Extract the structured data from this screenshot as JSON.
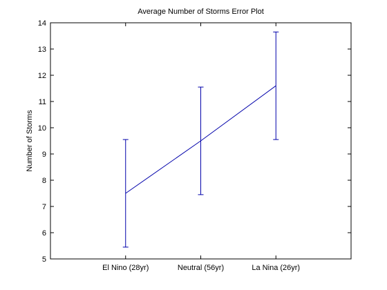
{
  "chart_data": {
    "type": "line",
    "title": "Average Number of Storms Error Plot",
    "xlabel": "",
    "ylabel": "Number of Storms",
    "categories": [
      "El Nino (28yr)",
      "Neutral (56yr)",
      "La Nina (26yr)"
    ],
    "series": [
      {
        "values": [
          7.5,
          9.5,
          11.6
        ],
        "lower": [
          5.45,
          7.45,
          9.55
        ],
        "upper": [
          9.55,
          11.55,
          13.65
        ],
        "color": "#0000aa"
      }
    ],
    "ylim": [
      5,
      14
    ],
    "yticks": [
      5,
      6,
      7,
      8,
      9,
      10,
      11,
      12,
      13,
      14
    ],
    "grid": false,
    "legend": "none"
  }
}
